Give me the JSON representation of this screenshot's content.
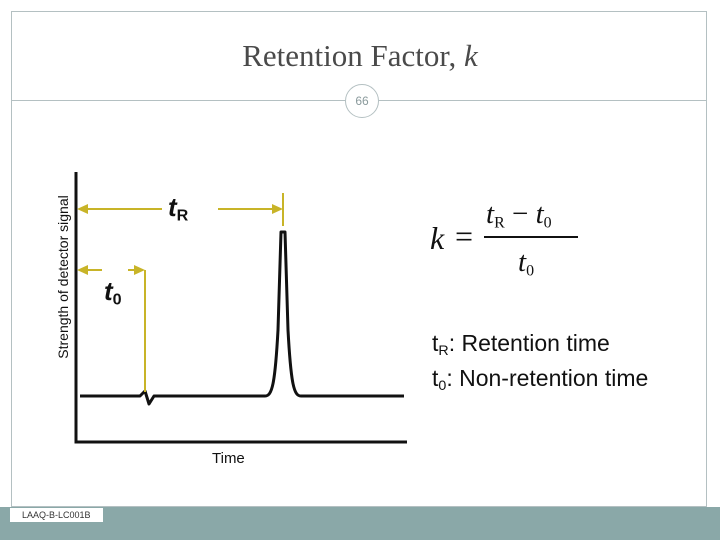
{
  "slide": {
    "title_text": "Retention Factor,",
    "title_symbol": "k",
    "page_number": "66",
    "footer_label": "LAAQ-B-LC001B"
  },
  "diagram": {
    "y_axis_label": "Strength of detector signal",
    "x_axis_label": "Time",
    "tr_label": {
      "main": "t",
      "sub": "R"
    },
    "t0_label": {
      "main": "t",
      "sub": "0"
    },
    "formula": {
      "lhs": "k",
      "equals": "=",
      "numerator": {
        "a": "t",
        "a_sub": "R",
        "op": " − ",
        "b": "t",
        "b_sub": "0"
      },
      "denominator": {
        "a": "t",
        "a_sub": "0"
      }
    },
    "definitions": [
      {
        "sym": "t",
        "sub": "R",
        "text": ": Retention time"
      },
      {
        "sym": "t",
        "sub": "0",
        "text": ": Non-retention time"
      }
    ]
  },
  "colors": {
    "marker": "#c8b428",
    "axes": "#111111",
    "footer_bar": "#8aa8a8",
    "frame": "#b4c0c2"
  }
}
